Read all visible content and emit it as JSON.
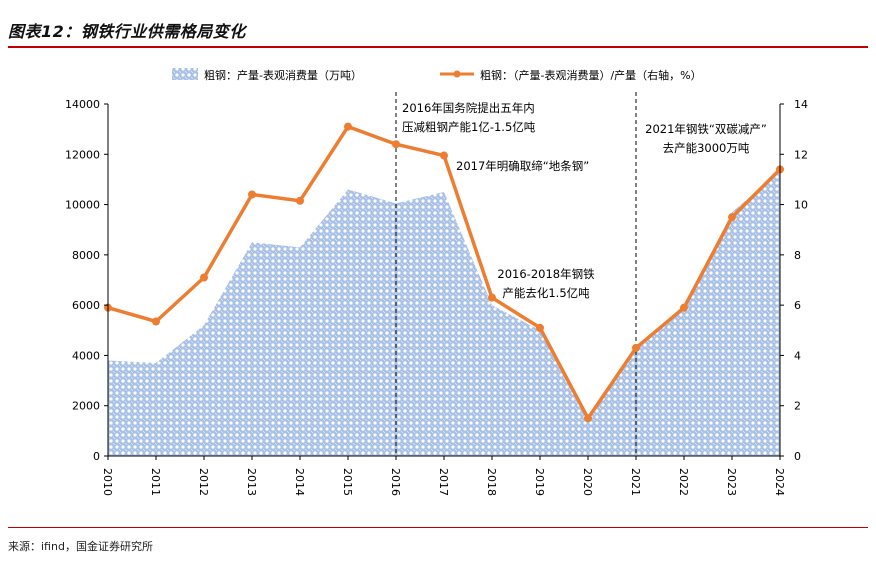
{
  "title": "图表12：钢铁行业供需格局变化",
  "source": "来源：ifind，国金证券研究所",
  "colors": {
    "area": "#4472c4",
    "line": "#ed7d31",
    "rule": "#c00000"
  },
  "chart_data": {
    "type": "area",
    "categories": [
      "2010",
      "2011",
      "2012",
      "2013",
      "2014",
      "2015",
      "2016",
      "2017",
      "2018",
      "2019",
      "2020",
      "2021",
      "2022",
      "2023",
      "2024"
    ],
    "series": [
      {
        "name": "粗钢：产量-表观消费量（万吨）",
        "type": "area",
        "axis": "left",
        "values": [
          3800,
          3700,
          5200,
          8500,
          8300,
          10600,
          10050,
          10500,
          6000,
          5000,
          1500,
          4400,
          5900,
          9700,
          11300
        ]
      },
      {
        "name": "粗钢：（产量-表观消费量）/产量（右轴，%）",
        "type": "line",
        "axis": "right",
        "values": [
          5.9,
          5.35,
          7.1,
          10.4,
          10.15,
          13.1,
          12.4,
          11.95,
          6.3,
          5.1,
          1.5,
          4.3,
          5.9,
          9.5,
          11.4
        ]
      }
    ],
    "y_left": {
      "min": 0,
      "max": 14000,
      "ticks": [
        "0",
        "2000",
        "4000",
        "6000",
        "8000",
        "10000",
        "12000",
        "14000"
      ]
    },
    "y_right": {
      "min": 0,
      "max": 14,
      "ticks": [
        "0",
        "2",
        "4",
        "6",
        "8",
        "10",
        "12",
        "14"
      ]
    },
    "vlines": [
      "2016",
      "2021"
    ],
    "annotations": [
      {
        "lines": [
          "2016年国务院提出五年内",
          "压减粗钢产能1亿-1.5亿吨"
        ]
      },
      {
        "lines": [
          "2017年明确取缔“地条钢”"
        ]
      },
      {
        "lines": [
          "2016-2018年钢铁",
          "产能去化1.5亿吨"
        ]
      },
      {
        "lines": [
          "2021年钢铁“双碳减产”",
          "去产能3000万吨"
        ]
      }
    ],
    "legend_position": "top-center"
  }
}
